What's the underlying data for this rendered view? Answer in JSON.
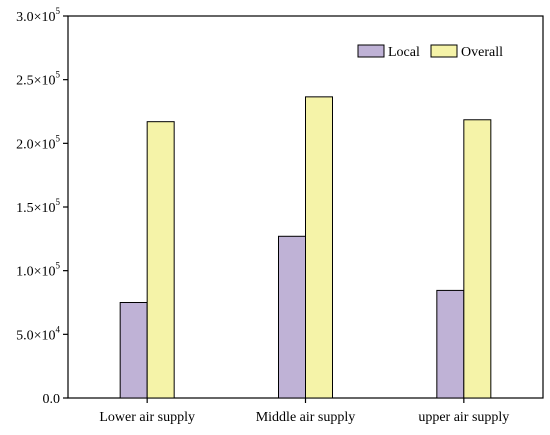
{
  "colors": {
    "local": "#bfb2d6",
    "overall": "#f5f3a8",
    "stroke": "#000000"
  },
  "chart_data": {
    "type": "bar",
    "categories": [
      "Lower air supply",
      "Middle air supply",
      "upper air supply"
    ],
    "series": [
      {
        "name": "Local",
        "values": [
          75000,
          127000,
          84500
        ]
      },
      {
        "name": "Overall",
        "values": [
          217000,
          236500,
          218500
        ]
      }
    ],
    "xlabel": "",
    "ylabel": "",
    "ylim": [
      0,
      300000
    ],
    "yticks": [
      0,
      50000,
      100000,
      150000,
      200000,
      250000,
      300000
    ],
    "ytick_labels": [
      {
        "mant": "0.0",
        "exp": ""
      },
      {
        "mant": "5.0×10",
        "exp": "4"
      },
      {
        "mant": "1.0×10",
        "exp": "5"
      },
      {
        "mant": "1.5×10",
        "exp": "5"
      },
      {
        "mant": "2.0×10",
        "exp": "5"
      },
      {
        "mant": "2.5×10",
        "exp": "5"
      },
      {
        "mant": "3.0×10",
        "exp": "5"
      }
    ],
    "legend_position": "top-right",
    "grid": false
  }
}
